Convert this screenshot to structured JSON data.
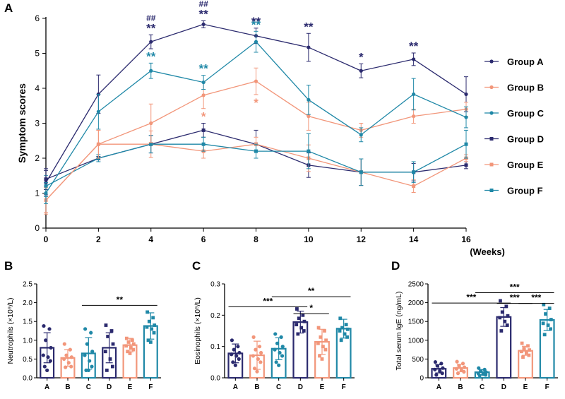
{
  "colors": {
    "A": "#2b2a6e",
    "B": "#f2967a",
    "C": "#1f88a7",
    "D": "#2b2a6e",
    "E": "#f2967a",
    "F": "#1f88a7"
  },
  "chart_data": [
    {
      "panel": "A",
      "type": "line",
      "ylabel": "Symptom scores",
      "xlabel": "(Weeks)",
      "ylim": [
        0,
        6
      ],
      "yticks": [
        0,
        1,
        2,
        3,
        4,
        5,
        6
      ],
      "xlim": [
        0,
        16
      ],
      "x": [
        0,
        2,
        4,
        6,
        8,
        10,
        12,
        14,
        16
      ],
      "series": [
        {
          "name": "Group A",
          "key": "A",
          "marker": "circle",
          "values": [
            1.3,
            3.83,
            5.33,
            5.83,
            5.5,
            5.17,
            4.5,
            4.83,
            3.83
          ],
          "err": [
            0.35,
            0.55,
            0.2,
            0.1,
            0.22,
            0.4,
            0.2,
            0.18,
            0.5
          ]
        },
        {
          "name": "Group B",
          "key": "B",
          "marker": "circle",
          "values": [
            0.8,
            2.4,
            3.0,
            3.8,
            4.2,
            3.2,
            2.8,
            3.2,
            3.4
          ],
          "err": [
            0.35,
            0.4,
            0.55,
            0.38,
            0.38,
            0.4,
            0.2,
            0.2,
            0.2
          ]
        },
        {
          "name": "Group C",
          "key": "C",
          "marker": "circle",
          "values": [
            1.0,
            3.33,
            4.5,
            4.17,
            5.33,
            3.67,
            2.67,
            3.83,
            3.17
          ],
          "err": [
            0.3,
            0.5,
            0.22,
            0.2,
            0.3,
            0.42,
            0.2,
            0.45,
            0.3
          ]
        },
        {
          "name": "Group D",
          "key": "D",
          "marker": "square",
          "values": [
            1.4,
            2.0,
            2.4,
            2.8,
            2.4,
            1.8,
            1.6,
            1.6,
            1.8
          ],
          "err": [
            0.3,
            0.05,
            0.25,
            0.2,
            0.4,
            0.35,
            0.38,
            0.25,
            0.1
          ]
        },
        {
          "name": "Group E",
          "key": "E",
          "marker": "square",
          "values": [
            0.8,
            2.4,
            2.4,
            2.2,
            2.4,
            2.0,
            1.6,
            1.2,
            2.0
          ],
          "err": [
            0.4,
            0.4,
            0.38,
            0.2,
            0.2,
            0.38,
            0.38,
            0.18,
            0.1
          ]
        },
        {
          "name": "Group F",
          "key": "F",
          "marker": "square",
          "values": [
            1.2,
            2.0,
            2.4,
            2.4,
            2.2,
            2.2,
            1.6,
            1.6,
            2.4
          ],
          "err": [
            0.3,
            0.1,
            0.25,
            0.2,
            0.2,
            0.5,
            0.38,
            0.3,
            0.4
          ]
        }
      ],
      "annotations": [
        {
          "x": 4,
          "text": "##",
          "key": "A",
          "kind": "hash",
          "above": "A"
        },
        {
          "x": 6,
          "text": "##",
          "key": "A",
          "kind": "hash",
          "above": "A"
        },
        {
          "x": 4,
          "text": "**",
          "key": "A",
          "kind": "star",
          "above": "A"
        },
        {
          "x": 6,
          "text": "**",
          "key": "A",
          "kind": "star",
          "above": "A"
        },
        {
          "x": 8,
          "text": "**",
          "key": "A",
          "kind": "star",
          "above": "A"
        },
        {
          "x": 10,
          "text": "**",
          "key": "A",
          "kind": "star",
          "above": "A"
        },
        {
          "x": 12,
          "text": "*",
          "key": "A",
          "kind": "star",
          "above": "A"
        },
        {
          "x": 14,
          "text": "**",
          "key": "A",
          "kind": "star",
          "above": "A"
        },
        {
          "x": 4,
          "text": "**",
          "key": "C",
          "kind": "star",
          "above": "C"
        },
        {
          "x": 6,
          "text": "**",
          "key": "C",
          "kind": "star",
          "above": "C"
        },
        {
          "x": 8,
          "text": "**",
          "key": "C",
          "kind": "star",
          "above": "C"
        },
        {
          "x": 6,
          "text": "*",
          "key": "B",
          "kind": "star",
          "below": "B"
        },
        {
          "x": 8,
          "text": "*",
          "key": "B",
          "kind": "star",
          "below": "B"
        }
      ]
    },
    {
      "panel": "B",
      "type": "bar",
      "ylabel": "Neutrophils (×10⁹/L)",
      "ylim": [
        0,
        2.5
      ],
      "yticks": [
        "0.0",
        "0.5",
        "1.0",
        "1.5",
        "2.0",
        "2.5"
      ],
      "categories": [
        "A",
        "B",
        "C",
        "D",
        "E",
        "F"
      ],
      "values": [
        0.8,
        0.53,
        0.65,
        0.8,
        0.87,
        1.38
      ],
      "err": [
        0.4,
        0.22,
        0.42,
        0.4,
        0.18,
        0.35
      ],
      "points": [
        [
          1.38,
          1.3,
          1.0,
          0.8,
          0.6,
          0.55,
          0.45,
          0.3,
          0.2
        ],
        [
          0.9,
          0.75,
          0.6,
          0.55,
          0.5,
          0.4,
          0.3,
          0.28
        ],
        [
          1.3,
          1.2,
          0.9,
          0.7,
          0.6,
          0.45,
          0.3,
          0.2,
          0.2
        ],
        [
          1.4,
          1.25,
          1.1,
          0.9,
          0.7,
          0.5,
          0.3,
          0.2
        ],
        [
          1.05,
          1.0,
          0.95,
          0.9,
          0.85,
          0.8,
          0.75,
          0.7,
          0.65
        ],
        [
          1.75,
          1.6,
          1.5,
          1.4,
          1.35,
          1.3,
          1.2,
          1.0,
          0.95
        ]
      ],
      "significance": [
        {
          "from": "C",
          "to": "F",
          "label": "**",
          "y": 1.93
        }
      ]
    },
    {
      "panel": "C",
      "type": "bar",
      "ylabel": "Eosinophils (×10⁹/L)",
      "ylim": [
        0,
        0.3
      ],
      "yticks": [
        "0.0",
        "0.1",
        "0.2",
        "0.3"
      ],
      "categories": [
        "A",
        "B",
        "C",
        "D",
        "E",
        "F"
      ],
      "values": [
        0.078,
        0.072,
        0.093,
        0.178,
        0.115,
        0.157
      ],
      "err": [
        0.03,
        0.045,
        0.035,
        0.035,
        0.04,
        0.03
      ],
      "points": [
        [
          0.12,
          0.1,
          0.09,
          0.08,
          0.075,
          0.07,
          0.06,
          0.05,
          0.04
        ],
        [
          0.13,
          0.1,
          0.09,
          0.08,
          0.07,
          0.06,
          0.05,
          0.03,
          0.02
        ],
        [
          0.14,
          0.13,
          0.11,
          0.1,
          0.09,
          0.08,
          0.07,
          0.05,
          0.04
        ],
        [
          0.22,
          0.2,
          0.19,
          0.18,
          0.17,
          0.16,
          0.15,
          0.14
        ],
        [
          0.16,
          0.15,
          0.13,
          0.12,
          0.11,
          0.1,
          0.09,
          0.07,
          0.06
        ],
        [
          0.19,
          0.17,
          0.16,
          0.155,
          0.15,
          0.14,
          0.13,
          0.12
        ]
      ],
      "significance": [
        {
          "from": "A",
          "to": "D",
          "label": "***",
          "y": 0.227
        },
        {
          "from": "C",
          "to": "F",
          "label": "**",
          "y": 0.259
        },
        {
          "from": "D",
          "to": "E",
          "label": "*",
          "y": 0.205
        }
      ]
    },
    {
      "panel": "D",
      "type": "bar",
      "ylabel": "Total serum IgE (ng/mL)",
      "ylim": [
        0,
        2500
      ],
      "yticks": [
        "0",
        "500",
        "1000",
        "1500",
        "2000",
        "2500"
      ],
      "categories": [
        "A",
        "B",
        "C",
        "D",
        "E",
        "F"
      ],
      "values": [
        240,
        260,
        150,
        1620,
        720,
        1540
      ],
      "err": [
        110,
        100,
        70,
        250,
        120,
        280
      ],
      "points": [
        [
          420,
          380,
          320,
          260,
          220,
          180,
          120,
          80
        ],
        [
          430,
          380,
          320,
          280,
          240,
          200,
          160,
          120
        ],
        [
          260,
          220,
          180,
          150,
          120,
          100,
          80,
          60
        ],
        [
          2050,
          1900,
          1750,
          1650,
          1600,
          1500,
          1400,
          1250
        ],
        [
          920,
          850,
          780,
          740,
          700,
          660,
          600,
          550
        ],
        [
          1950,
          1850,
          1700,
          1550,
          1450,
          1400,
          1300,
          1150
        ]
      ],
      "significance": [
        {
          "from": "A",
          "to": "D",
          "label": "***",
          "y": 1990
        },
        {
          "from": "C",
          "to": "F",
          "label": "***",
          "y": 2265
        },
        {
          "from": "D",
          "to": "E",
          "label": "***",
          "y": 1980
        },
        {
          "from": "E",
          "to": "F",
          "label": "***",
          "y": 1980
        }
      ]
    }
  ]
}
